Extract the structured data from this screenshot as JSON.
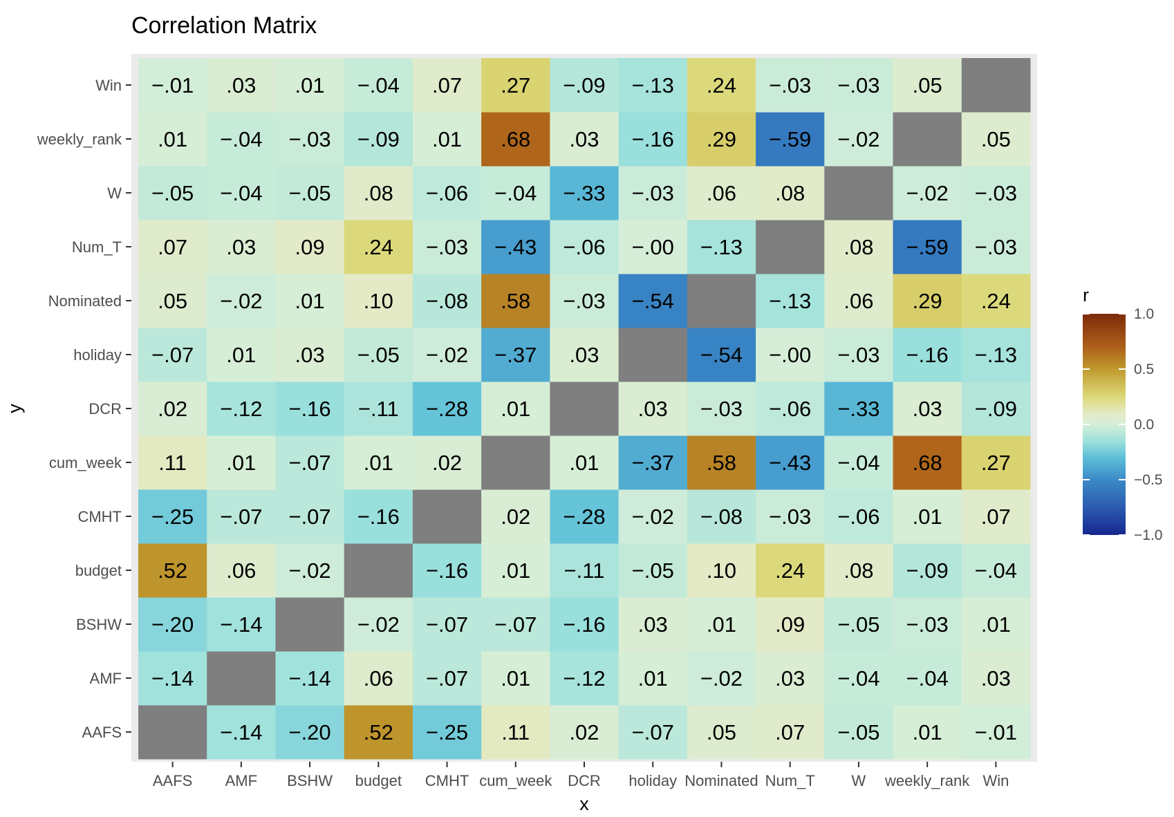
{
  "chart_data": {
    "type": "heatmap",
    "title": "Correlation Matrix",
    "xlabel": "x",
    "ylabel": "y",
    "x_categories": [
      "AAFS",
      "AMF",
      "BSHW",
      "budget",
      "CMHT",
      "cum_week",
      "DCR",
      "holiday",
      "Nominated",
      "Num_T",
      "W",
      "weekly_rank",
      "Win"
    ],
    "y_categories": [
      "AAFS",
      "AMF",
      "BSHW",
      "budget",
      "CMHT",
      "cum_week",
      "DCR",
      "holiday",
      "Nominated",
      "Num_T",
      "W",
      "weekly_rank",
      "Win"
    ],
    "values": [
      [
        null,
        -0.14,
        -0.2,
        0.52,
        -0.25,
        0.11,
        0.02,
        -0.07,
        0.05,
        0.07,
        -0.05,
        0.01,
        -0.01
      ],
      [
        -0.14,
        null,
        -0.14,
        0.06,
        -0.07,
        0.01,
        -0.12,
        0.01,
        -0.02,
        0.03,
        -0.04,
        -0.04,
        0.03
      ],
      [
        -0.2,
        -0.14,
        null,
        -0.02,
        -0.07,
        -0.07,
        -0.16,
        0.03,
        0.01,
        0.09,
        -0.05,
        -0.03,
        0.01
      ],
      [
        0.52,
        0.06,
        -0.02,
        null,
        -0.16,
        0.01,
        -0.11,
        -0.05,
        0.1,
        0.24,
        0.08,
        -0.09,
        -0.04
      ],
      [
        -0.25,
        -0.07,
        -0.07,
        -0.16,
        null,
        0.02,
        -0.28,
        -0.02,
        -0.08,
        -0.03,
        -0.06,
        0.01,
        0.07
      ],
      [
        0.11,
        0.01,
        -0.07,
        0.01,
        0.02,
        null,
        0.01,
        -0.37,
        0.58,
        -0.43,
        -0.04,
        0.68,
        0.27
      ],
      [
        0.02,
        -0.12,
        -0.16,
        -0.11,
        -0.28,
        0.01,
        null,
        0.03,
        -0.03,
        -0.06,
        -0.33,
        0.03,
        -0.09
      ],
      [
        -0.07,
        0.01,
        0.03,
        -0.05,
        -0.02,
        -0.37,
        0.03,
        null,
        -0.54,
        -0.0,
        -0.03,
        -0.16,
        -0.13
      ],
      [
        0.05,
        -0.02,
        0.01,
        0.1,
        -0.08,
        0.58,
        -0.03,
        -0.54,
        null,
        -0.13,
        0.06,
        0.29,
        0.24
      ],
      [
        0.07,
        0.03,
        0.09,
        0.24,
        -0.03,
        -0.43,
        -0.06,
        -0.0,
        -0.13,
        null,
        0.08,
        -0.59,
        -0.03
      ],
      [
        -0.05,
        -0.04,
        -0.05,
        0.08,
        -0.06,
        -0.04,
        -0.33,
        -0.03,
        0.06,
        0.08,
        null,
        -0.02,
        -0.03
      ],
      [
        0.01,
        -0.04,
        -0.03,
        -0.09,
        0.01,
        0.68,
        0.03,
        -0.16,
        0.29,
        -0.59,
        -0.02,
        null,
        0.05
      ],
      [
        -0.01,
        0.03,
        0.01,
        -0.04,
        0.07,
        0.27,
        -0.09,
        -0.13,
        0.24,
        -0.03,
        -0.03,
        0.05,
        null
      ]
    ],
    "legend": {
      "title": "r",
      "position": "right",
      "limits": [
        -1.0,
        1.0
      ],
      "ticks": [
        "1.0",
        "0.5",
        "0.0",
        "−0.5",
        "−1.0"
      ],
      "tick_values": [
        1.0,
        0.5,
        0.0,
        -0.5,
        -1.0
      ]
    },
    "colors": {
      "na_fill": "#7f7f7f",
      "panel_background": "#ebebeb",
      "scale": [
        {
          "v": -1.0,
          "c": "#15278f"
        },
        {
          "v": -0.75,
          "c": "#2b5cb0"
        },
        {
          "v": -0.5,
          "c": "#3b8ac7"
        },
        {
          "v": -0.3,
          "c": "#5ebfd8"
        },
        {
          "v": -0.15,
          "c": "#9de1dc"
        },
        {
          "v": 0.0,
          "c": "#d6eed8"
        },
        {
          "v": 0.1,
          "c": "#e4eac6"
        },
        {
          "v": 0.25,
          "c": "#dbd877"
        },
        {
          "v": 0.5,
          "c": "#c09a2e"
        },
        {
          "v": 0.7,
          "c": "#ad6019"
        },
        {
          "v": 1.0,
          "c": "#7d2a0a"
        }
      ]
    }
  }
}
